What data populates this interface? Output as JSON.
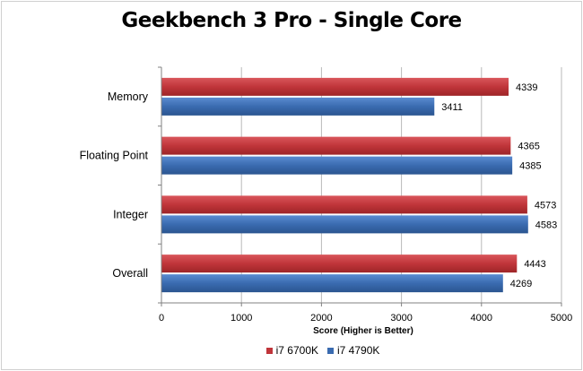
{
  "chart_data": {
    "type": "bar",
    "orientation": "horizontal",
    "title": "Geekbench 3 Pro - Single Core",
    "xlabel": "Score (Higher is Better)",
    "ylabel": "",
    "xlim": [
      0,
      5000
    ],
    "xticks": [
      0,
      1000,
      2000,
      3000,
      4000,
      5000
    ],
    "categories": [
      "Memory",
      "Floating Point",
      "Integer",
      "Overall"
    ],
    "series": [
      {
        "name": "i7 6700K",
        "color": "#c0353a",
        "values": [
          4339,
          4365,
          4573,
          4443
        ]
      },
      {
        "name": "i7 4790K",
        "color": "#3a6bb0",
        "values": [
          3411,
          4385,
          4583,
          4269
        ]
      }
    ],
    "grid": true,
    "legend_position": "bottom"
  }
}
